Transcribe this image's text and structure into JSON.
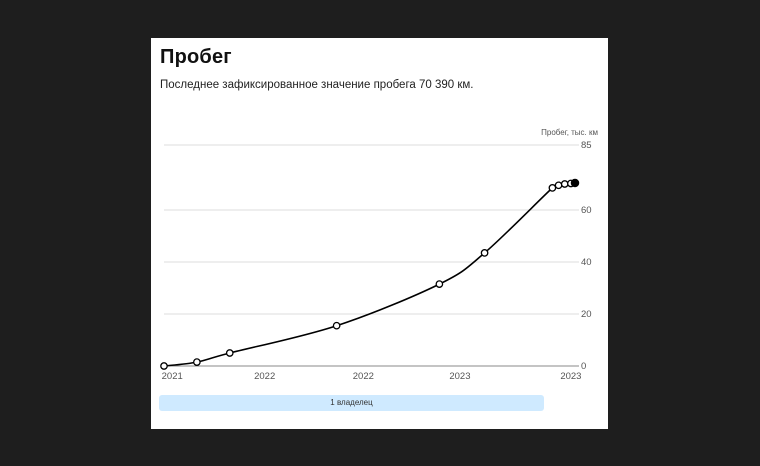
{
  "card": {
    "title": "Пробег",
    "subtitle": "Последнее зафиксированное значение пробега 70 390 км."
  },
  "chart_data": {
    "type": "line",
    "ylabel": "Пробег, тыс. км",
    "ylim": [
      0,
      85
    ],
    "y_ticks": [
      0,
      20,
      40,
      60,
      85
    ],
    "x_ticks": [
      "2021",
      "2022",
      "2022",
      "2023",
      "2023"
    ],
    "points": [
      {
        "x": 0.0,
        "y": 0.0
      },
      {
        "x": 0.08,
        "y": 1.5
      },
      {
        "x": 0.16,
        "y": 5.0
      },
      {
        "x": 0.42,
        "y": 15.5
      },
      {
        "x": 0.67,
        "y": 31.5
      },
      {
        "x": 0.78,
        "y": 43.5
      },
      {
        "x": 0.945,
        "y": 68.5
      },
      {
        "x": 0.96,
        "y": 69.5
      },
      {
        "x": 0.975,
        "y": 70.0
      },
      {
        "x": 0.99,
        "y": 70.2
      },
      {
        "x": 1.0,
        "y": 70.39
      }
    ],
    "grid": true,
    "line_color": "#000000",
    "grid_color": "#dddddd"
  },
  "owners": {
    "label": "1 владелец",
    "color": "#cfeaff"
  }
}
